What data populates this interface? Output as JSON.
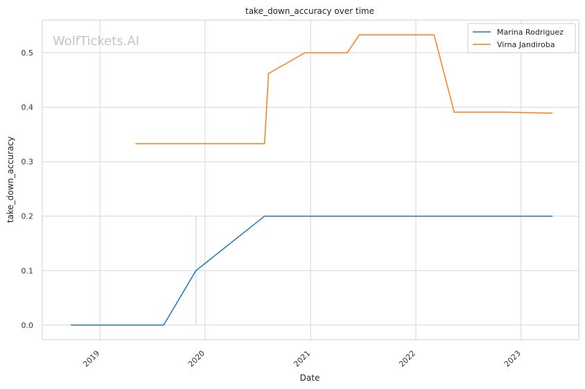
{
  "watermark": "WolfTickets.AI",
  "chart_data": {
    "type": "line",
    "title": "take_down_accuracy over time",
    "xlabel": "Date",
    "ylabel": "take_down_accuracy",
    "xlim": [
      "2018-06-15",
      "2023-07-20"
    ],
    "ylim": [
      -0.027,
      0.56
    ],
    "x_ticks": [
      "2019-01-01",
      "2020-01-01",
      "2021-01-01",
      "2022-01-01",
      "2023-01-01"
    ],
    "x_tick_labels": [
      "2019",
      "2020",
      "2021",
      "2022",
      "2023"
    ],
    "y_ticks": [
      0.0,
      0.1,
      0.2,
      0.3,
      0.4,
      0.5
    ],
    "y_tick_labels": [
      "0.0",
      "0.1",
      "0.2",
      "0.3",
      "0.4",
      "0.5"
    ],
    "grid": true,
    "legend_position": "top-right",
    "series": [
      {
        "name": "Marina Rodriguez",
        "color": "#1f77b4",
        "x": [
          "2018-09-22",
          "2019-08-10",
          "2019-11-30",
          "2020-07-25",
          "2023-04-20"
        ],
        "y": [
          0.0,
          0.0,
          0.1,
          0.2,
          0.2
        ]
      },
      {
        "name": "Virna Jandiroba",
        "color": "#ff7f0e",
        "x": [
          "2019-05-04",
          "2020-07-25",
          "2020-08-08",
          "2020-12-12",
          "2021-05-08",
          "2021-06-19",
          "2022-03-05",
          "2022-05-14",
          "2022-11-05",
          "2023-04-20"
        ],
        "y": [
          0.333,
          0.333,
          0.462,
          0.5,
          0.5,
          0.533,
          0.533,
          0.391,
          0.391,
          0.389
        ]
      }
    ],
    "vertical_marker": {
      "x": "2019-11-30",
      "y_range": [
        0.0,
        0.2
      ],
      "color": "#a8dcd6"
    }
  }
}
